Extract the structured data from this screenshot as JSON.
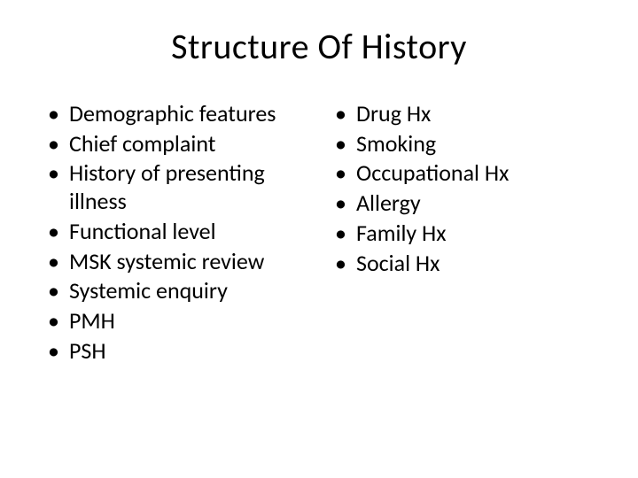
{
  "title": "Structure Of History",
  "title_fontsize": 40,
  "body_fontsize": 26,
  "text_color": "#000000",
  "background_color": "#ffffff",
  "font_family": "Calibri",
  "left_column": {
    "items": [
      "Demographic features",
      "Chief complaint",
      "History of presenting illness",
      "Functional level",
      "MSK systemic review",
      "Systemic enquiry",
      "PMH",
      "PSH"
    ]
  },
  "right_column": {
    "items": [
      "Drug Hx",
      "Smoking",
      "Occupational Hx",
      "Allergy",
      "Family Hx",
      "Social Hx"
    ]
  }
}
